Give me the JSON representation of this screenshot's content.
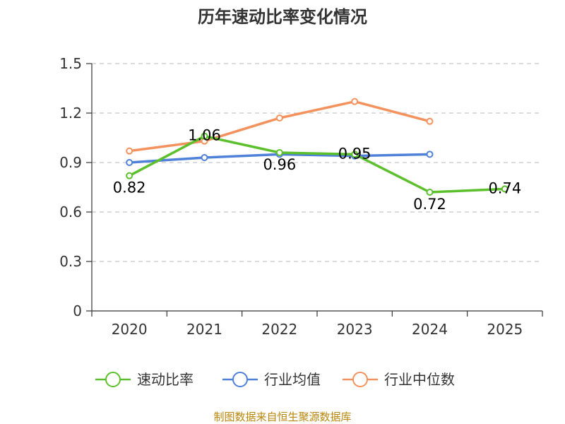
{
  "chart_data": {
    "type": "line",
    "title": "历年速动比率变化情况",
    "categories": [
      "2020",
      "2021",
      "2022",
      "2023",
      "2024",
      "2025"
    ],
    "ylim": [
      0,
      1.5
    ],
    "yticks": [
      "0",
      "0.3",
      "0.6",
      "0.9",
      "1.2",
      "1.5"
    ],
    "ytick_values": [
      0,
      0.3,
      0.6,
      0.9,
      1.2,
      1.5
    ],
    "grid": true,
    "legend_position": "bottom-center",
    "series": [
      {
        "name": "速动比率",
        "color": "#5cc02c",
        "values": [
          0.82,
          1.06,
          0.96,
          0.95,
          0.72,
          0.74
        ],
        "labels": [
          "0.82",
          "1.06",
          "0.96",
          "0.95",
          "0.72",
          "0.74"
        ],
        "show_labels": true
      },
      {
        "name": "行业均值",
        "color": "#4f81d9",
        "values": [
          0.9,
          0.93,
          0.95,
          0.94,
          0.95,
          null
        ],
        "show_labels": false
      },
      {
        "name": "行业中位数",
        "color": "#f4925e",
        "values": [
          0.97,
          1.03,
          1.17,
          1.27,
          1.15,
          null
        ],
        "show_labels": false
      }
    ],
    "source": "制图数据来自恒生聚源数据库"
  }
}
